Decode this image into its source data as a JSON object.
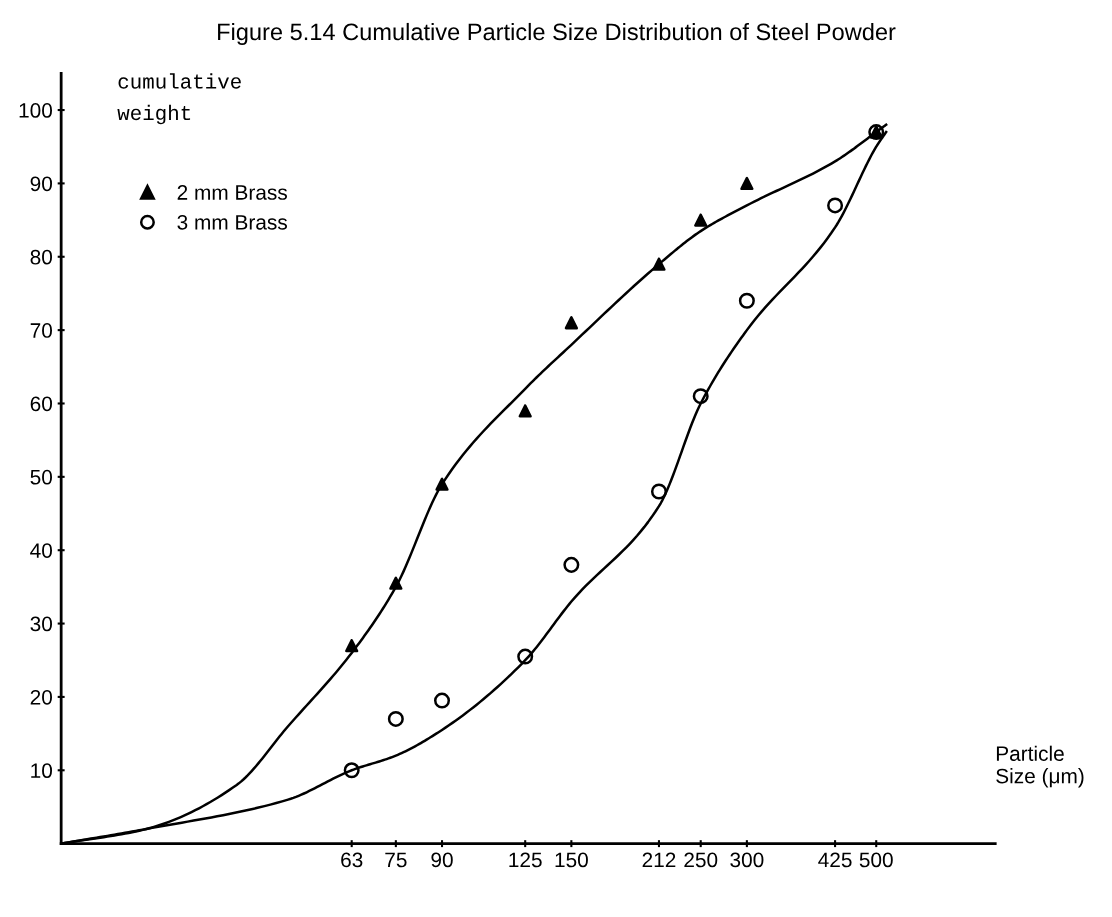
{
  "chart_data": {
    "type": "scatter",
    "title": "Figure 5.14 Cumulative Particle Size Distribution of Steel Powder",
    "ylabel": "cumulative\nweight",
    "xlabel": "Particle\nSize (μm)",
    "log": "x",
    "xlim": [
      20,
      800
    ],
    "xticks": [
      63,
      75,
      90,
      125,
      150,
      212,
      250,
      300,
      425,
      500
    ],
    "ylim": [
      0,
      105
    ],
    "yticks": [
      10,
      20,
      30,
      40,
      50,
      60,
      70,
      80,
      90,
      100
    ],
    "grid": false,
    "legend": "top left",
    "series": [
      {
        "name": "2 mm Brass",
        "marker": "triangle",
        "color": "#000000",
        "x": [
          63,
          75,
          90,
          125,
          150,
          212,
          250,
          300,
          500
        ],
        "values": [
          27,
          35.5,
          49,
          59,
          71,
          79,
          85,
          90,
          97
        ]
      },
      {
        "name": "3 mm Brass",
        "marker": "circle",
        "color": "#000000",
        "x": [
          63,
          75,
          90,
          125,
          150,
          212,
          250,
          300,
          425,
          500
        ],
        "values": [
          10,
          17,
          19.5,
          25.5,
          38,
          48,
          61,
          74,
          87,
          97
        ]
      },
      {
        "type": "line",
        "marker": "none",
        "color": "#000000",
        "x": [
          20,
          28,
          40,
          49,
          63,
          75,
          90,
          125,
          150,
          212,
          250,
          300,
          425,
          500,
          520
        ],
        "values": [
          0,
          2,
          8,
          16,
          26,
          35,
          49,
          62,
          68,
          79,
          83.5,
          87,
          93,
          97,
          98
        ]
      },
      {
        "type": "line",
        "marker": "none",
        "color": "#000000",
        "x": [
          20,
          28,
          49,
          63,
          75,
          90,
          125,
          150,
          212,
          250,
          300,
          425,
          500,
          520
        ],
        "values": [
          0,
          2,
          6,
          10,
          12,
          15.5,
          25,
          33,
          46,
          60,
          70,
          84,
          95,
          97
        ]
      }
    ]
  }
}
